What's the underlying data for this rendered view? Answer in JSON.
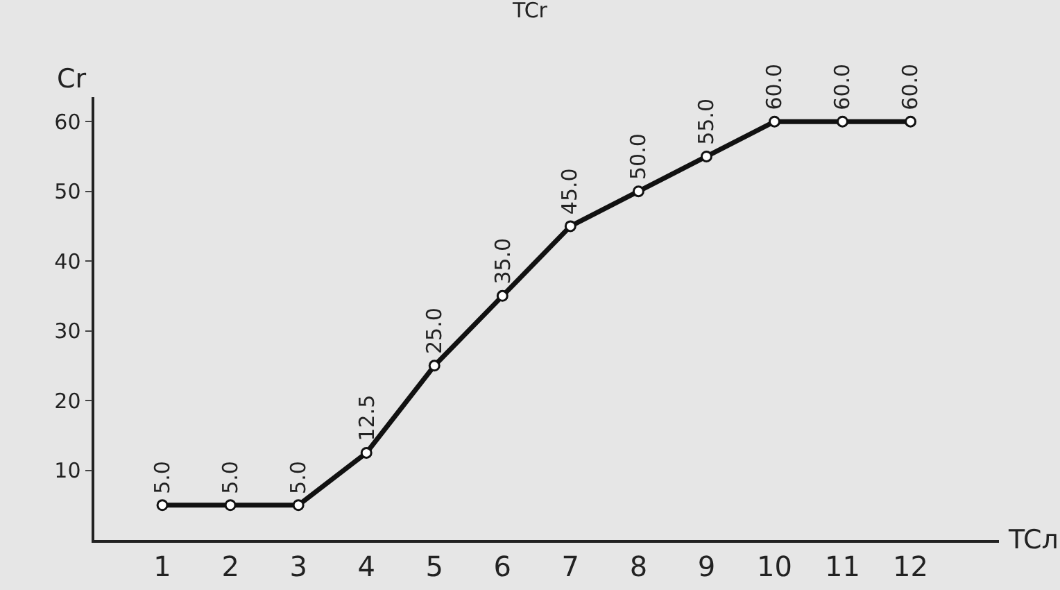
{
  "chart_data": {
    "type": "line",
    "title": "TCr",
    "xlabel": "TCл",
    "ylabel": "Cr",
    "x": [
      1,
      2,
      3,
      4,
      5,
      6,
      7,
      8,
      9,
      10,
      11,
      12
    ],
    "series": [
      {
        "color": "#111111",
        "values": [
          5,
          5,
          5,
          12.5,
          25,
          35,
          45,
          50,
          55,
          60,
          60,
          60
        ],
        "value_labels": [
          "5.0",
          "5.0",
          "5.0",
          "12.5",
          "25.0",
          "35.0",
          "45.0",
          "50.0",
          "55.0",
          "60.0",
          "60.0",
          "60.0"
        ]
      }
    ],
    "xlim": [
      0,
      13.3
    ],
    "xticks": [
      1,
      2,
      3,
      4,
      5,
      6,
      7,
      8,
      9,
      10,
      11,
      12
    ],
    "ylim": [
      0,
      63.5
    ],
    "yticks": [
      10,
      20,
      30,
      40,
      50,
      60
    ],
    "grid": false,
    "marker": "circle",
    "line_style": "solid"
  }
}
